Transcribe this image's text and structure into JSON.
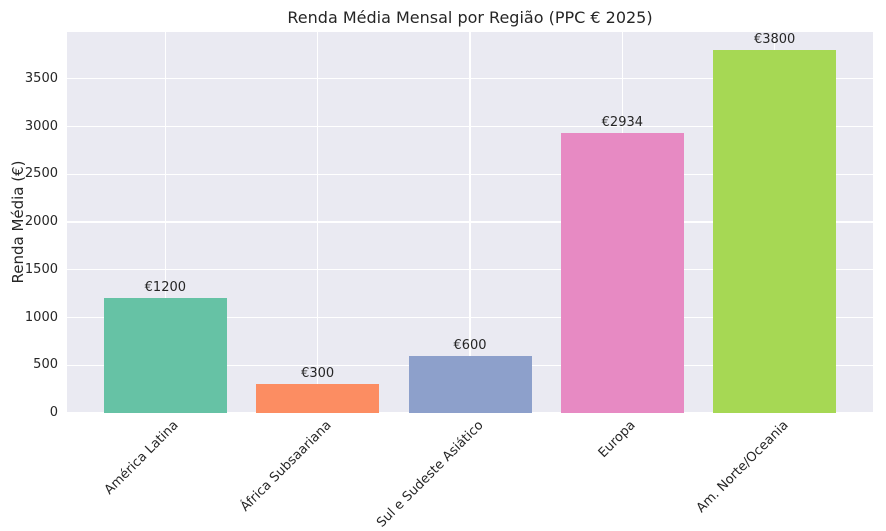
{
  "chart_data": {
    "type": "bar",
    "title": "Renda Média Mensal por Região (PPC € 2025)",
    "ylabel": "Renda Média (€)",
    "xlabel": "",
    "categories": [
      "América Latina",
      "África Subsaariana",
      "Sul e Sudeste Asiático",
      "Europa",
      "Am. Norte/Oceania"
    ],
    "values": [
      1200,
      300,
      600,
      2934,
      3800
    ],
    "bar_labels": [
      "€1200",
      "€300",
      "€600",
      "€2934",
      "€3800"
    ],
    "bar_colors": [
      "#66c2a5",
      "#fc8d62",
      "#8da0cb",
      "#e78ac3",
      "#a6d854"
    ],
    "y_ticks": [
      0,
      500,
      1000,
      1500,
      2000,
      2500,
      3000,
      3500
    ],
    "ylim": [
      0,
      3990
    ],
    "grid": true,
    "legend": null,
    "plot_bg_color": "#eaeaf2",
    "grid_color": "#ffffff",
    "text_color": "#262626"
  }
}
